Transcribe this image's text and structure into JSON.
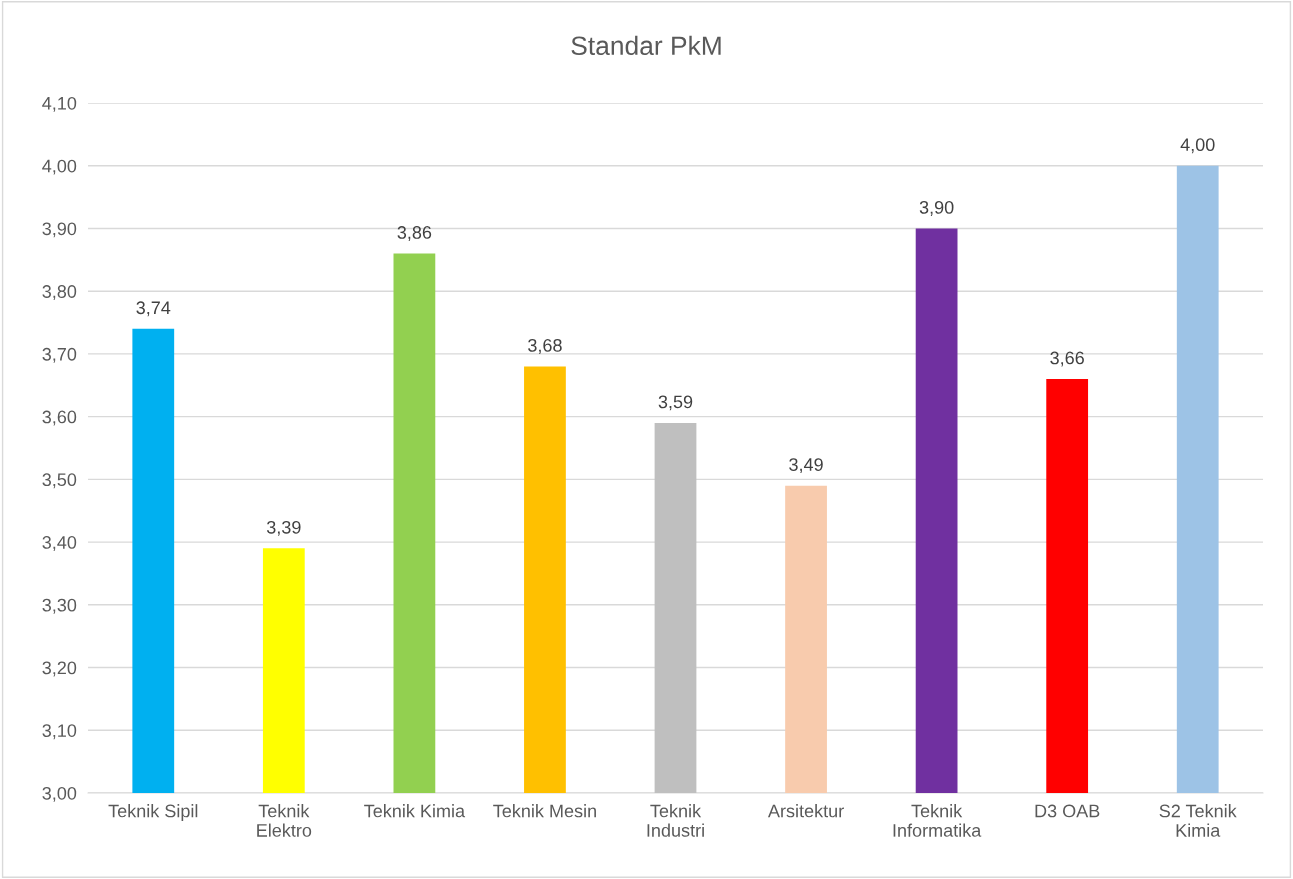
{
  "chart_data": {
    "type": "bar",
    "title": "Standar PkM",
    "categories": [
      "Teknik Sipil",
      "Teknik\nElektro",
      "Teknik Kimia",
      "Teknik Mesin",
      "Teknik\nIndustri",
      "Arsitektur",
      "Teknik\nInformatika",
      "D3 OAB",
      "S2 Teknik\nKimia"
    ],
    "values": [
      3.74,
      3.39,
      3.86,
      3.68,
      3.59,
      3.49,
      3.9,
      3.66,
      4.0
    ],
    "colors": [
      "#00b0f0",
      "#ffff00",
      "#92d050",
      "#ffc000",
      "#bfbfbf",
      "#f8cbad",
      "#7030a0",
      "#ff0000",
      "#9dc3e6"
    ],
    "value_labels": [
      "3,74",
      "3,39",
      "3,86",
      "3,68",
      "3,59",
      "3,49",
      "3,90",
      "3,66",
      "4,00"
    ],
    "ylim": [
      3.0,
      4.1
    ],
    "yticks": [
      {
        "value": 3.0,
        "label": "3,00"
      },
      {
        "value": 3.1,
        "label": "3,10"
      },
      {
        "value": 3.2,
        "label": "3,20"
      },
      {
        "value": 3.3,
        "label": "3,30"
      },
      {
        "value": 3.4,
        "label": "3,40"
      },
      {
        "value": 3.5,
        "label": "3,50"
      },
      {
        "value": 3.6,
        "label": "3,60"
      },
      {
        "value": 3.7,
        "label": "3,70"
      },
      {
        "value": 3.8,
        "label": "3,80"
      },
      {
        "value": 3.9,
        "label": "3,90"
      },
      {
        "value": 4.0,
        "label": "4,00"
      },
      {
        "value": 4.1,
        "label": "4,10"
      }
    ],
    "grid": "y"
  }
}
